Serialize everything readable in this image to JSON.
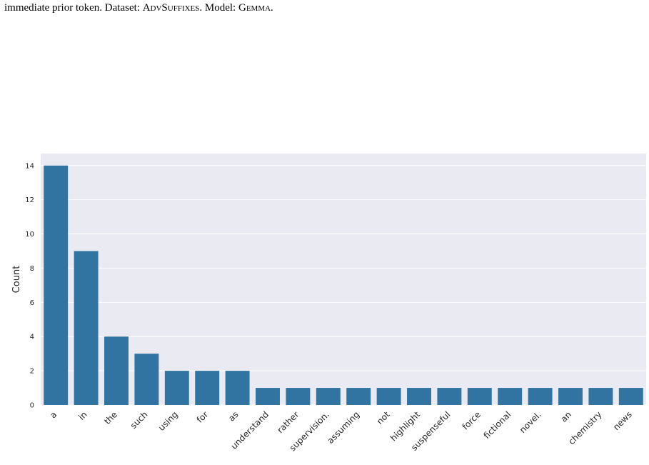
{
  "caption": {
    "text": "immediate prior token. Dataset: ",
    "dataset_label": "Dataset:",
    "dataset": "AdvSuffixes",
    "model_label": "Model:",
    "model": "Gemma"
  },
  "chart_data": {
    "type": "bar",
    "title": "",
    "xlabel": "",
    "ylabel": "Count",
    "ylim": [
      0,
      14.7
    ],
    "yticks": [
      0,
      2,
      4,
      6,
      8,
      10,
      12,
      14
    ],
    "grid": true,
    "categories": [
      "a",
      "in",
      "the",
      "such",
      "using",
      "for",
      "as",
      "understand",
      "rather",
      "supervision.",
      "assuming",
      "not",
      "highlight",
      "suspenseful",
      "force",
      "fictional",
      "novel.",
      "an",
      "chemistry",
      "news"
    ],
    "values": [
      14,
      9,
      4,
      3,
      2,
      2,
      2,
      1,
      1,
      1,
      1,
      1,
      1,
      1,
      1,
      1,
      1,
      1,
      1,
      1
    ],
    "colors": {
      "bar": "#3274a1",
      "plot_background": "#eaeaf2",
      "grid": "#ffffff",
      "text": "#262626"
    }
  }
}
